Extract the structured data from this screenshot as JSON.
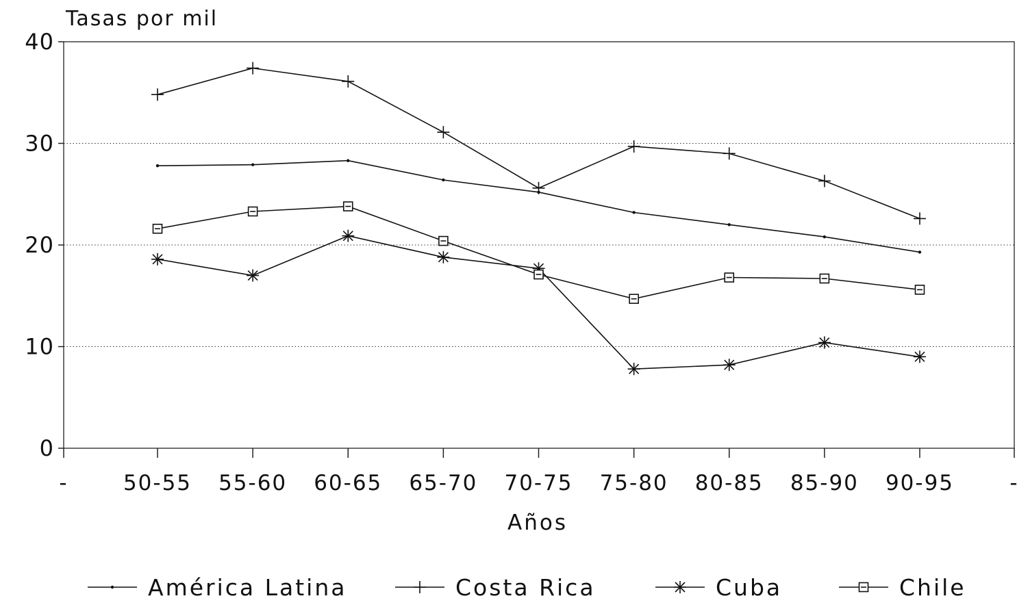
{
  "chart_data": {
    "type": "line",
    "ylabel": "Tasas por mil",
    "xlabel": "Años",
    "ylim": [
      0,
      40
    ],
    "yticks": [
      0,
      10,
      20,
      30,
      40
    ],
    "grid": "horizontal dotted",
    "legend_position": "bottom",
    "categories": [
      "50-55",
      "55-60",
      "60-65",
      "65-70",
      "70-75",
      "75-80",
      "80-85",
      "85-90",
      "90-95"
    ],
    "x_edge_labels": [
      "-",
      "-"
    ],
    "series": [
      {
        "name": "América Latina",
        "marker": "dot",
        "values": [
          27.8,
          27.9,
          28.3,
          26.4,
          25.2,
          23.2,
          22.0,
          20.8,
          19.3
        ]
      },
      {
        "name": "Costa Rica",
        "marker": "plus",
        "values": [
          34.8,
          37.4,
          36.1,
          31.1,
          25.6,
          29.7,
          29.0,
          26.3,
          22.6
        ]
      },
      {
        "name": "Cuba",
        "marker": "asterisk",
        "values": [
          18.6,
          17.0,
          20.9,
          18.8,
          17.7,
          7.8,
          8.2,
          10.4,
          9.0
        ]
      },
      {
        "name": "Chile",
        "marker": "square",
        "values": [
          21.6,
          23.3,
          23.8,
          20.4,
          17.1,
          14.7,
          16.8,
          16.7,
          15.6
        ]
      }
    ]
  }
}
